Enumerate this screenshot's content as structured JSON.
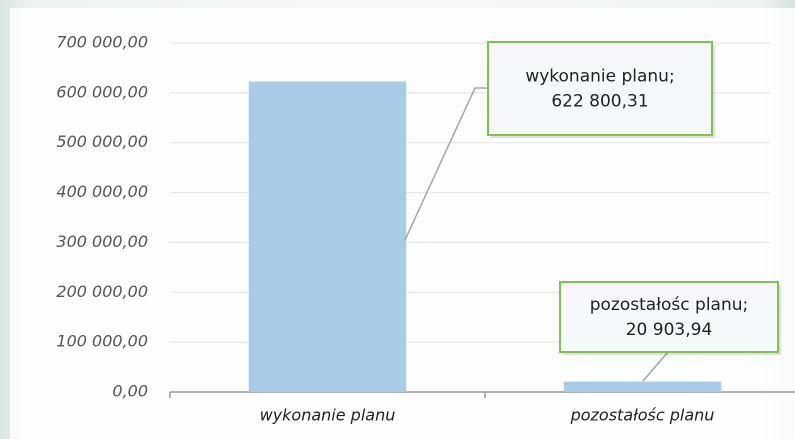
{
  "chart_data": {
    "type": "bar",
    "categories": [
      "wykonanie planu",
      "pozostałośc planu"
    ],
    "values": [
      622800.31,
      20903.94
    ],
    "value_labels": [
      "622 800,31",
      "20 903,94"
    ],
    "data_label_names": [
      "wykonanie planu;",
      "pozostałośc planu;"
    ],
    "color": "#a8cbe6",
    "ylim": [
      0,
      700000
    ],
    "yticks": [
      {
        "value": 0,
        "label": "0,00"
      },
      {
        "value": 100000,
        "label": "100 000,00"
      },
      {
        "value": 200000,
        "label": "200 000,00"
      },
      {
        "value": 300000,
        "label": "300 000,00"
      },
      {
        "value": 400000,
        "label": "400 000,00"
      },
      {
        "value": 500000,
        "label": "500 000,00"
      },
      {
        "value": 600000,
        "label": "600 000,00"
      },
      {
        "value": 700000,
        "label": "700 000,00"
      }
    ],
    "grid": true
  }
}
